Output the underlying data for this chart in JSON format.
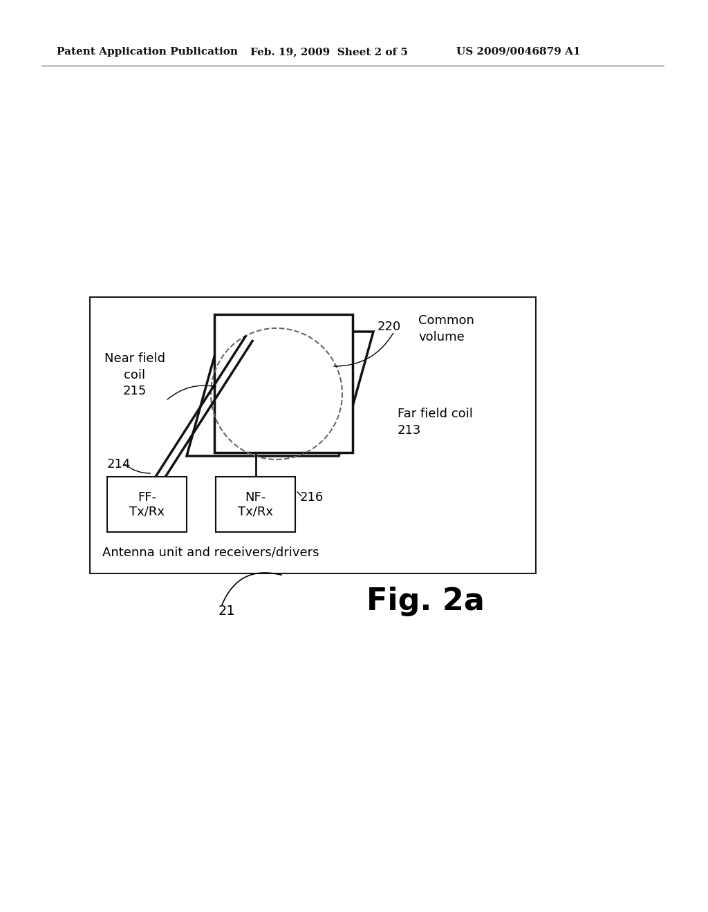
{
  "bg_color": "#ffffff",
  "header_left": "Patent Application Publication",
  "header_mid": "Feb. 19, 2009  Sheet 2 of 5",
  "header_right": "US 2009/0046879 A1",
  "fig_label": "Fig. 2a",
  "fig_number": "21",
  "labels": {
    "near_field_coil": "Near field\ncoil\n215",
    "far_field_coil": "Far field coil\n213",
    "common_volume": "Common\nvolume",
    "common_volume_num": "220",
    "label_214": "214",
    "label_216": "216",
    "antenna_unit": "Antenna unit and receivers/drivers"
  }
}
